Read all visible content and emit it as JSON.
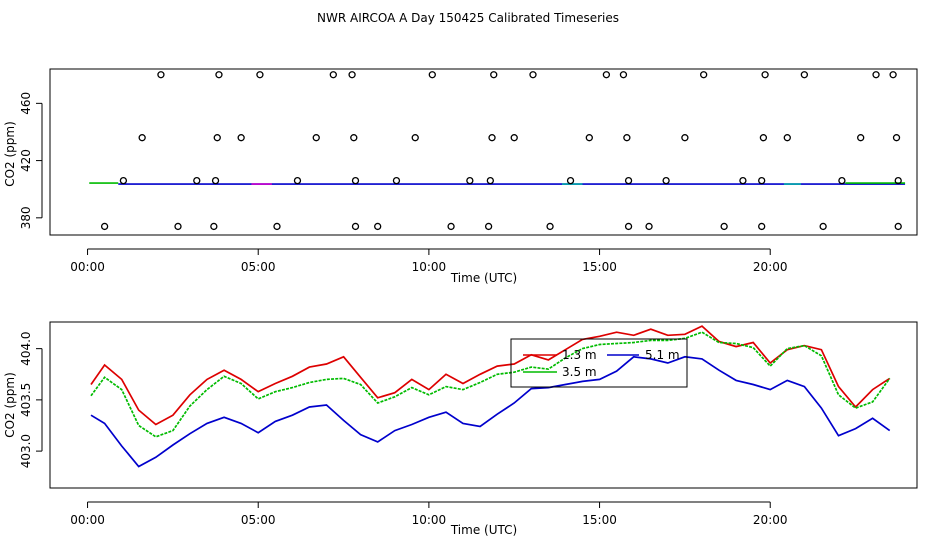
{
  "title": "NWR AIRCOA A  Day 150425  Calibrated Timeseries",
  "colors": {
    "red": "#dd0000",
    "green": "#00bb00",
    "blue": "#0000cc",
    "magenta": "#cc00cc",
    "cyan": "#00aaaa",
    "black": "#000000"
  },
  "chart_data": [
    {
      "type": "scatter",
      "xlabel": "Time (UTC)",
      "ylabel": "CO2 (ppm)",
      "xlim": [
        -1.1,
        24.3
      ],
      "ylim": [
        368,
        484
      ],
      "x_tick_values": [
        0,
        5,
        10,
        15,
        20
      ],
      "x_tick_labels": [
        "00:00",
        "05:00",
        "10:00",
        "15:00",
        "20:00"
      ],
      "y_tick_values": [
        380,
        420,
        460
      ],
      "y_tick_labels": [
        "380",
        "420",
        "460"
      ],
      "grid": false,
      "flag_points_hours": {
        "480": [
          2.15,
          3.85,
          5.05,
          7.2,
          7.75,
          10.1,
          11.9,
          13.05,
          15.2,
          15.7,
          18.05,
          19.85,
          21.0,
          23.1,
          23.6
        ],
        "436": [
          1.6,
          3.8,
          4.5,
          6.7,
          7.8,
          9.6,
          11.85,
          12.5,
          14.7,
          15.8,
          17.5,
          19.8,
          20.5,
          22.65,
          23.7
        ],
        "406": [
          1.05,
          3.2,
          3.75,
          6.15,
          7.85,
          9.05,
          11.2,
          11.8,
          14.15,
          15.85,
          16.95,
          19.2,
          19.75,
          22.1,
          23.75
        ],
        "374": [
          0.5,
          2.65,
          3.7,
          5.55,
          7.85,
          8.5,
          10.65,
          11.75,
          13.55,
          15.85,
          16.45,
          18.65,
          19.75,
          21.55,
          23.75
        ]
      },
      "baseline_ppm": 403.6
    },
    {
      "type": "line",
      "xlabel": "Time (UTC)",
      "ylabel": "CO2 (ppm)",
      "xlim": [
        -1.1,
        24.3
      ],
      "ylim": [
        402.64,
        404.26
      ],
      "x_tick_values": [
        0,
        5,
        10,
        15,
        20
      ],
      "x_tick_labels": [
        "00:00",
        "05:00",
        "10:00",
        "15:00",
        "20:00"
      ],
      "y_tick_values": [
        403.0,
        403.5,
        404.0
      ],
      "y_tick_labels": [
        "403.0",
        "403.5",
        "404.0"
      ],
      "grid": false,
      "legend_position": "top-right",
      "x": [
        0.1,
        0.5,
        1.0,
        1.5,
        2.0,
        2.5,
        3.0,
        3.5,
        4.0,
        4.5,
        5.0,
        5.5,
        6.0,
        6.5,
        7.0,
        7.5,
        8.0,
        8.5,
        9.0,
        9.5,
        10.0,
        10.5,
        11.0,
        11.5,
        12.0,
        12.5,
        13.0,
        13.5,
        14.0,
        14.5,
        15.0,
        15.5,
        16.0,
        16.5,
        17.0,
        17.5,
        18.0,
        18.5,
        19.0,
        19.5,
        20.0,
        20.5,
        21.0,
        21.5,
        22.0,
        22.5,
        23.0,
        23.5
      ],
      "series": [
        {
          "name": "1.3 m",
          "color": "#dd0000",
          "values": [
            403.65,
            403.84,
            403.7,
            403.4,
            403.26,
            403.35,
            403.55,
            403.7,
            403.79,
            403.7,
            403.58,
            403.66,
            403.73,
            403.82,
            403.85,
            403.92,
            403.72,
            403.52,
            403.57,
            403.7,
            403.6,
            403.75,
            403.66,
            403.75,
            403.83,
            403.85,
            403.94,
            403.89,
            403.99,
            404.09,
            404.12,
            404.16,
            404.13,
            404.19,
            404.13,
            404.14,
            404.22,
            404.07,
            404.02,
            404.06,
            403.86,
            403.99,
            404.03,
            403.99,
            403.63,
            403.43,
            403.6,
            403.71
          ]
        },
        {
          "name": "3.5 m",
          "color": "#00bb00",
          "values": [
            403.54,
            403.72,
            403.6,
            403.25,
            403.14,
            403.2,
            403.44,
            403.6,
            403.73,
            403.66,
            403.51,
            403.58,
            403.62,
            403.67,
            403.7,
            403.71,
            403.65,
            403.47,
            403.53,
            403.62,
            403.55,
            403.63,
            403.6,
            403.67,
            403.75,
            403.77,
            403.82,
            403.8,
            403.91,
            404.0,
            404.04,
            404.05,
            404.06,
            404.08,
            404.08,
            404.1,
            404.16,
            404.06,
            404.05,
            404.01,
            403.83,
            404.0,
            404.03,
            403.93,
            403.55,
            403.42,
            403.48,
            403.71
          ]
        },
        {
          "name": "5.1 m",
          "color": "#0000cc",
          "values": [
            403.35,
            403.27,
            403.05,
            402.85,
            402.94,
            403.06,
            403.17,
            403.27,
            403.33,
            403.27,
            403.18,
            403.29,
            403.35,
            403.43,
            403.45,
            403.3,
            403.16,
            403.09,
            403.2,
            403.26,
            403.33,
            403.38,
            403.27,
            403.24,
            403.36,
            403.47,
            403.61,
            403.62,
            403.65,
            403.68,
            403.7,
            403.78,
            403.92,
            403.9,
            403.86,
            403.92,
            403.9,
            403.79,
            403.69,
            403.65,
            403.6,
            403.69,
            403.63,
            403.42,
            403.15,
            403.22,
            403.32,
            403.2
          ]
        }
      ]
    }
  ]
}
